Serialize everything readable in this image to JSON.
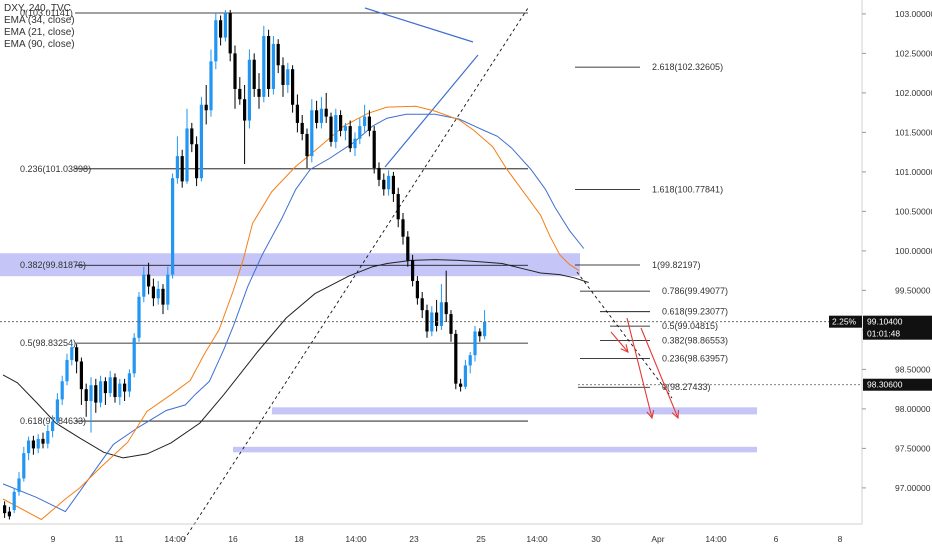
{
  "legend": {
    "title": "DXY, 240, TVC",
    "ema34": "EMA (34, close)",
    "ema21": "EMA (21, close)",
    "ema90": "EMA (90, close)"
  },
  "colors": {
    "up": "#2196f3",
    "down": "#000000",
    "ema21": "#f57f17",
    "ema34": "#3f6fd1",
    "ema90": "#222222",
    "zone": "#8c8cf0",
    "arrow": "#e53935",
    "fibLine": "#000000"
  },
  "chart_data": {
    "type": "candlestick",
    "title": "DXY, 240, TVC",
    "ylim": [
      96.62,
      103.1
    ],
    "y_ticks": [
      "103.00000",
      "102.50000",
      "102.00000",
      "101.50000",
      "101.00000",
      "100.50000",
      "100.00000",
      "99.50000",
      "99.00000",
      "98.50000",
      "98.00000",
      "97.50000",
      "97.00000"
    ],
    "x_ticks": [
      "9",
      "11",
      "14:00",
      "16",
      "18",
      "14:00",
      "23",
      "25",
      "14:00",
      "30",
      "Apr",
      "14:00",
      "6",
      "8"
    ],
    "price_labels": {
      "last_pct": "2.25%",
      "last": "99.10400",
      "countdown": "01:01:48",
      "level": "98.30600"
    },
    "fib_main": [
      {
        "label": "0(103.01141)",
        "price": 103.01141
      },
      {
        "label": "0.236(101.03898)",
        "price": 101.03898
      },
      {
        "label": "0.382(99.81876)",
        "price": 99.81876
      },
      {
        "label": "0.5(98.83254)",
        "price": 98.83254
      },
      {
        "label": "0.618(97.84633)",
        "price": 97.84633
      }
    ],
    "fib_right": [
      {
        "label": "2.618(102.32605)",
        "price": 102.32605
      },
      {
        "label": "1.618(100.77841)",
        "price": 100.77841
      },
      {
        "label": "1(99.82197)",
        "price": 99.82197
      },
      {
        "label": "0.786(99.49077)",
        "price": 99.49077
      },
      {
        "label": "0.618(99.23077)",
        "price": 99.23077
      },
      {
        "label": "0.5(99.04815)",
        "price": 99.04815
      },
      {
        "label": "0.382(98.86553)",
        "price": 98.86553
      },
      {
        "label": "0.236(98.63957)",
        "price": 98.63957
      },
      {
        "label": "0(98.27433)",
        "price": 98.27433
      }
    ],
    "zones": [
      {
        "from": 99.68,
        "to": 99.97
      },
      {
        "from": 97.93,
        "to": 98.02
      },
      {
        "from": 97.45,
        "to": 97.52
      }
    ],
    "candles": [
      [
        96.78,
        96.68,
        96.83,
        96.62
      ],
      [
        96.7,
        96.64,
        96.76,
        96.6
      ],
      [
        96.72,
        96.95,
        97.0,
        96.68
      ],
      [
        96.95,
        97.12,
        97.2,
        96.9
      ],
      [
        97.12,
        97.44,
        97.52,
        97.08
      ],
      [
        97.44,
        97.6,
        97.65,
        97.35
      ],
      [
        97.6,
        97.5,
        97.66,
        97.42
      ],
      [
        97.5,
        97.62,
        97.68,
        97.44
      ],
      [
        97.62,
        97.56,
        97.7,
        97.5
      ],
      [
        97.56,
        97.72,
        97.8,
        97.5
      ],
      [
        97.72,
        97.84,
        97.92,
        97.64
      ],
      [
        97.84,
        98.12,
        98.2,
        97.8
      ],
      [
        98.12,
        98.35,
        98.42,
        98.05
      ],
      [
        98.35,
        98.62,
        98.7,
        98.3
      ],
      [
        98.62,
        98.78,
        98.86,
        98.55
      ],
      [
        98.78,
        98.6,
        98.82,
        98.45
      ],
      [
        98.6,
        98.25,
        98.65,
        98.05
      ],
      [
        98.25,
        98.1,
        98.32,
        97.9
      ],
      [
        98.1,
        98.3,
        98.4,
        97.7
      ],
      [
        98.3,
        98.08,
        98.38,
        97.95
      ],
      [
        98.08,
        98.35,
        98.42,
        98.02
      ],
      [
        98.35,
        98.2,
        98.4,
        98.05
      ],
      [
        98.2,
        98.4,
        98.48,
        98.15
      ],
      [
        98.4,
        98.15,
        98.45,
        98.08
      ],
      [
        98.15,
        98.32,
        98.38,
        98.05
      ],
      [
        98.32,
        98.22,
        98.38,
        98.1
      ],
      [
        98.22,
        98.45,
        98.5,
        98.15
      ],
      [
        98.45,
        98.9,
        98.96,
        98.4
      ],
      [
        98.9,
        99.42,
        99.48,
        98.85
      ],
      [
        99.42,
        99.7,
        99.8,
        99.35
      ],
      [
        99.7,
        99.55,
        99.85,
        99.45
      ],
      [
        99.55,
        99.4,
        99.65,
        99.3
      ],
      [
        99.4,
        99.52,
        99.62,
        99.32
      ],
      [
        99.52,
        99.32,
        99.58,
        99.2
      ],
      [
        99.32,
        99.7,
        99.8,
        99.25
      ],
      [
        99.7,
        100.92,
        100.98,
        99.65
      ],
      [
        100.92,
        101.2,
        101.45,
        100.85
      ],
      [
        101.2,
        100.88,
        101.28,
        100.8
      ],
      [
        100.88,
        101.55,
        101.8,
        100.85
      ],
      [
        101.55,
        101.35,
        101.62,
        101.25
      ],
      [
        101.35,
        100.92,
        101.45,
        100.82
      ],
      [
        100.92,
        101.85,
        101.95,
        100.88
      ],
      [
        101.85,
        101.78,
        102.1,
        101.6
      ],
      [
        101.78,
        102.4,
        102.55,
        101.7
      ],
      [
        102.4,
        102.92,
        103.02,
        102.3
      ],
      [
        102.92,
        102.7,
        102.98,
        102.6
      ],
      [
        102.7,
        103.01,
        103.05,
        102.65
      ],
      [
        103.01,
        102.5,
        103.05,
        102.4
      ],
      [
        102.5,
        102.05,
        102.6,
        101.8
      ],
      [
        102.05,
        101.92,
        102.2,
        101.85
      ],
      [
        101.92,
        101.65,
        102.1,
        101.1
      ],
      [
        101.65,
        102.42,
        102.55,
        101.55
      ],
      [
        102.42,
        102.05,
        102.5,
        101.95
      ],
      [
        102.05,
        101.95,
        102.25,
        101.8
      ],
      [
        101.95,
        102.72,
        102.85,
        101.88
      ],
      [
        102.72,
        102.05,
        102.8,
        101.95
      ],
      [
        102.05,
        102.62,
        102.72,
        101.98
      ],
      [
        102.62,
        102.35,
        102.68,
        102.25
      ],
      [
        102.35,
        102.1,
        102.45,
        101.95
      ],
      [
        102.1,
        102.3,
        102.38,
        102.0
      ],
      [
        102.3,
        101.85,
        102.35,
        101.75
      ],
      [
        101.85,
        101.62,
        101.98,
        101.5
      ],
      [
        101.62,
        101.48,
        101.72,
        101.4
      ],
      [
        101.48,
        101.2,
        101.55,
        101.05
      ],
      [
        101.2,
        101.78,
        101.92,
        101.12
      ],
      [
        101.78,
        101.62,
        101.9,
        101.55
      ],
      [
        101.62,
        101.8,
        101.95,
        101.55
      ],
      [
        101.8,
        101.7,
        102.0,
        101.62
      ],
      [
        101.7,
        101.38,
        101.75,
        101.32
      ],
      [
        101.38,
        101.72,
        101.8,
        101.3
      ],
      [
        101.72,
        101.52,
        101.78,
        101.45
      ],
      [
        101.52,
        101.58,
        101.62,
        101.4
      ],
      [
        101.58,
        101.3,
        101.65,
        101.25
      ],
      [
        101.3,
        101.42,
        101.5,
        101.2
      ],
      [
        101.42,
        101.58,
        101.68,
        101.35
      ],
      [
        101.58,
        101.7,
        101.85,
        101.5
      ],
      [
        101.7,
        101.52,
        101.78,
        101.45
      ],
      [
        101.52,
        101.05,
        101.58,
        100.98
      ],
      [
        101.05,
        100.9,
        101.12,
        100.82
      ],
      [
        100.9,
        100.78,
        100.98,
        100.7
      ],
      [
        100.78,
        100.95,
        101.02,
        100.7
      ],
      [
        100.95,
        100.72,
        101.0,
        100.62
      ],
      [
        100.72,
        100.4,
        100.8,
        100.3
      ],
      [
        100.4,
        100.18,
        100.48,
        100.08
      ],
      [
        100.18,
        99.88,
        100.25,
        99.8
      ],
      [
        99.88,
        99.62,
        99.95,
        99.55
      ],
      [
        99.62,
        99.4,
        99.68,
        99.32
      ],
      [
        99.4,
        99.25,
        99.48,
        99.15
      ],
      [
        99.25,
        98.98,
        99.32,
        98.9
      ],
      [
        98.98,
        99.22,
        99.3,
        98.92
      ],
      [
        99.22,
        99.05,
        99.38,
        98.98
      ],
      [
        99.05,
        99.35,
        99.58,
        99.0
      ],
      [
        99.35,
        99.2,
        99.75,
        99.1
      ],
      [
        99.2,
        98.95,
        99.25,
        98.85
      ],
      [
        98.95,
        98.32,
        99.0,
        98.25
      ],
      [
        98.32,
        98.28,
        98.38,
        98.22
      ],
      [
        98.28,
        98.55,
        98.62,
        98.25
      ],
      [
        98.55,
        98.68,
        98.72,
        98.45
      ],
      [
        98.68,
        98.98,
        99.05,
        98.6
      ],
      [
        98.98,
        98.92,
        99.02,
        98.85
      ],
      [
        98.92,
        99.1,
        99.25,
        98.88
      ]
    ],
    "ema21": [
      [
        0,
        96.86
      ],
      [
        8,
        96.6
      ],
      [
        13,
        96.86
      ],
      [
        16,
        97.0
      ],
      [
        20,
        97.24
      ],
      [
        26,
        97.58
      ],
      [
        30,
        97.97
      ],
      [
        35,
        98.18
      ],
      [
        39,
        98.36
      ],
      [
        42,
        98.7
      ],
      [
        45,
        99.0
      ],
      [
        48,
        99.5
      ],
      [
        50,
        99.88
      ],
      [
        52,
        100.35
      ],
      [
        56,
        100.75
      ],
      [
        61,
        101.07
      ],
      [
        66,
        101.32
      ],
      [
        71,
        101.58
      ],
      [
        76,
        101.74
      ],
      [
        80,
        101.82
      ],
      [
        86,
        101.83
      ],
      [
        90,
        101.77
      ],
      [
        95,
        101.66
      ],
      [
        98,
        101.53
      ],
      [
        102,
        101.32
      ],
      [
        105,
        101.03
      ],
      [
        109,
        100.7
      ],
      [
        112,
        100.45
      ],
      [
        114,
        100.18
      ],
      [
        116,
        99.95
      ],
      [
        118,
        99.83
      ],
      [
        120,
        99.75
      ]
    ],
    "ema34": [
      [
        0,
        97.05
      ],
      [
        7,
        96.88
      ],
      [
        13,
        96.7
      ],
      [
        23,
        97.55
      ],
      [
        28,
        97.76
      ],
      [
        34,
        97.98
      ],
      [
        38,
        98.05
      ],
      [
        40,
        98.18
      ],
      [
        43,
        98.35
      ],
      [
        46,
        98.75
      ],
      [
        48,
        99.05
      ],
      [
        51,
        99.55
      ],
      [
        54,
        99.95
      ],
      [
        58,
        100.4
      ],
      [
        61,
        100.78
      ],
      [
        64,
        101.03
      ],
      [
        68,
        101.17
      ],
      [
        73,
        101.37
      ],
      [
        77,
        101.58
      ],
      [
        80,
        101.68
      ],
      [
        84,
        101.73
      ],
      [
        90,
        101.73
      ],
      [
        95,
        101.67
      ],
      [
        100,
        101.53
      ],
      [
        103,
        101.45
      ],
      [
        106,
        101.3
      ],
      [
        110,
        101.03
      ],
      [
        113,
        100.78
      ],
      [
        115,
        100.55
      ],
      [
        118,
        100.26
      ],
      [
        121,
        100.03
      ]
    ],
    "ema90": [
      [
        0,
        98.43
      ],
      [
        3,
        98.33
      ],
      [
        7,
        98.08
      ],
      [
        11,
        97.82
      ],
      [
        16,
        97.63
      ],
      [
        21,
        97.45
      ],
      [
        25,
        97.38
      ],
      [
        30,
        97.43
      ],
      [
        35,
        97.57
      ],
      [
        41,
        97.82
      ],
      [
        46,
        98.18
      ],
      [
        53,
        98.72
      ],
      [
        59,
        99.15
      ],
      [
        65,
        99.46
      ],
      [
        72,
        99.68
      ],
      [
        77,
        99.8
      ],
      [
        80,
        99.84
      ],
      [
        85,
        99.88
      ],
      [
        90,
        99.89
      ],
      [
        95,
        99.88
      ],
      [
        100,
        99.86
      ],
      [
        104,
        99.84
      ],
      [
        108,
        99.78
      ],
      [
        112,
        99.72
      ],
      [
        116,
        99.7
      ],
      [
        119,
        99.66
      ],
      [
        122,
        99.6
      ]
    ]
  }
}
